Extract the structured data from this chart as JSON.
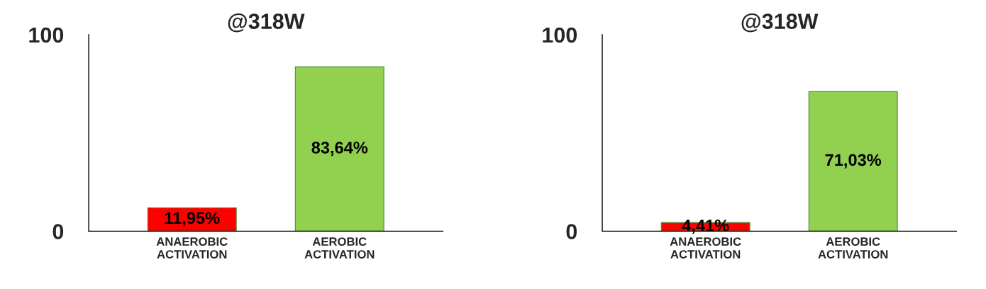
{
  "chart_data": [
    {
      "type": "bar",
      "title": "@318W",
      "categories": [
        "ANAEROBIC\nACTIVATION",
        "AEROBIC\nACTIVATION"
      ],
      "values": [
        11.95,
        83.64
      ],
      "colors": [
        "#ff0000",
        "#92d050"
      ],
      "value_labels": [
        "11,95%",
        "83,64%"
      ],
      "ylim": [
        0,
        100
      ],
      "yticks": [
        0,
        100
      ],
      "grid": false,
      "legend": false
    },
    {
      "type": "bar",
      "title": "@318W",
      "categories": [
        "ANAEROBIC\nACTIVATION",
        "AEROBIC\nACTIVATION"
      ],
      "values": [
        4.41,
        71.03
      ],
      "colors": [
        "#ff0000",
        "#92d050"
      ],
      "value_labels": [
        "4,41%",
        "71,03%"
      ],
      "ylim": [
        0,
        100
      ],
      "yticks": [
        0,
        100
      ],
      "grid": false,
      "legend": false
    }
  ]
}
